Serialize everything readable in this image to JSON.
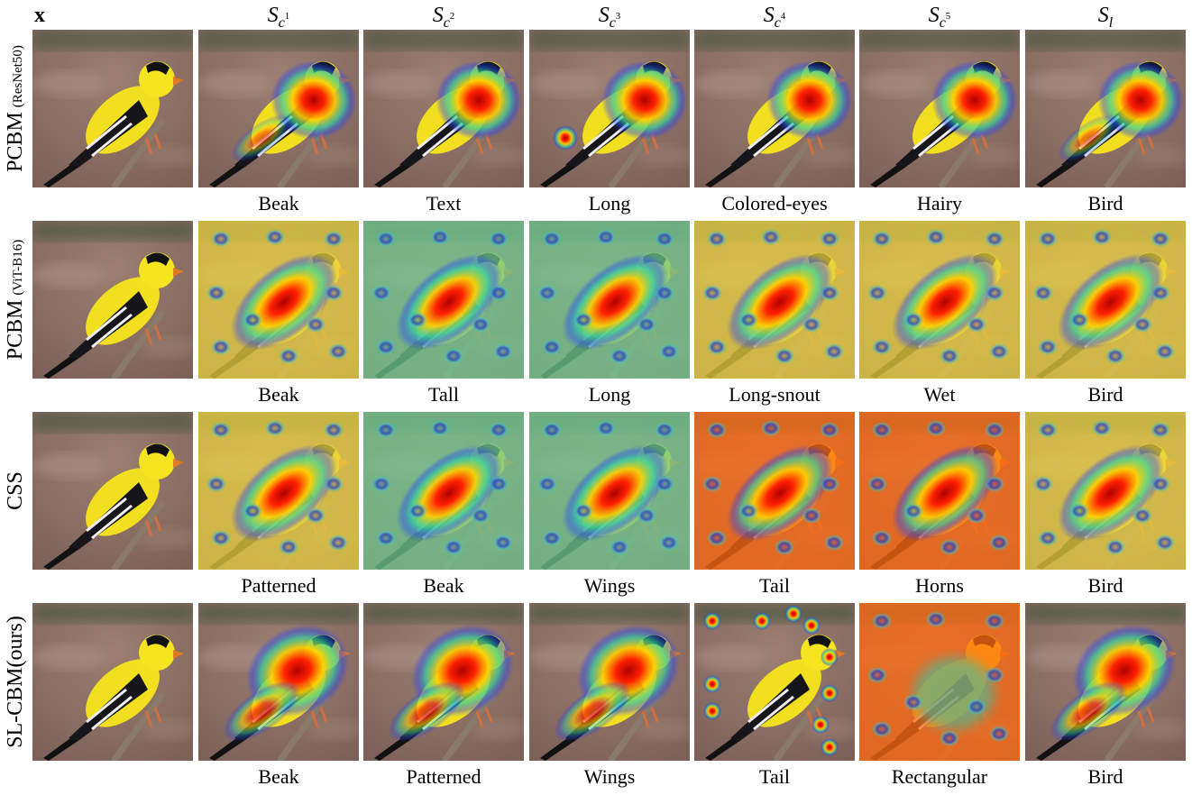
{
  "columns": [
    {
      "symbol": "x"
    },
    {
      "symbol": "S",
      "sub": "c",
      "sup": "1"
    },
    {
      "symbol": "S",
      "sub": "c",
      "sup": "2"
    },
    {
      "symbol": "S",
      "sub": "c",
      "sup": "3"
    },
    {
      "symbol": "S",
      "sub": "c",
      "sup": "4"
    },
    {
      "symbol": "S",
      "sub": "c",
      "sup": "5"
    },
    {
      "symbol": "S",
      "sub": "l"
    }
  ],
  "rows": [
    {
      "label": "PCBM",
      "note": "(ResNet50)",
      "captions": [
        "Beak",
        "Text",
        "Long",
        "Colored-eyes",
        "Hairy",
        "Bird"
      ]
    },
    {
      "label": "PCBM",
      "note": "(ViT-B16)",
      "captions": [
        "Beak",
        "Tall",
        "Long",
        "Long-snout",
        "Wet",
        "Bird"
      ]
    },
    {
      "label": "CSS",
      "captions": [
        "Patterned",
        "Beak",
        "Wings",
        "Tail",
        "Horns",
        "Bird"
      ]
    },
    {
      "label": "SL-CBM(ours)",
      "captions": [
        "Beak",
        "Patterned",
        "Wings",
        "Tail",
        "Rectangular",
        "Bird"
      ]
    }
  ]
}
